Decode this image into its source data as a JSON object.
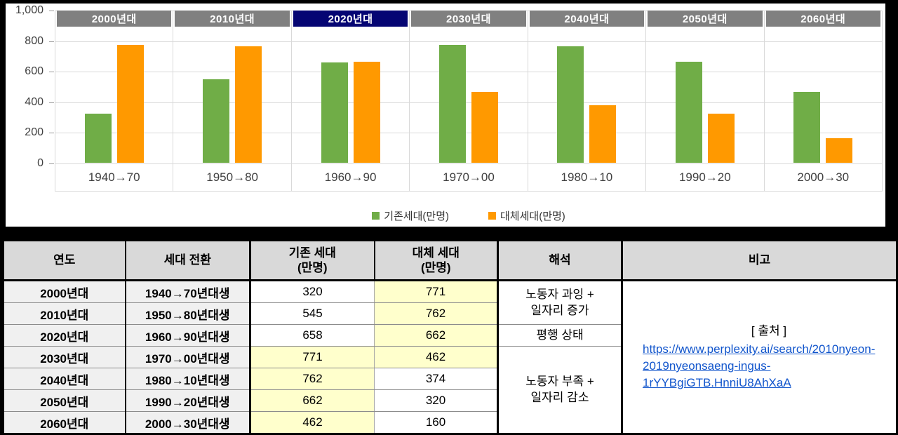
{
  "colors": {
    "existing_series": "#70AD47",
    "replacement_series": "#FF9900",
    "decade_header_bg": "#808080",
    "decade_header_selected_bg": "#050573",
    "table_header_bg": "#D9D9D9",
    "label_cell_bg": "#F0F0F0",
    "highlight_cell_bg": "#FFFFCC",
    "link_color": "#1155CC",
    "grid_color": "#D9D9D9"
  },
  "chart": {
    "y_axis": {
      "ticks": [
        "1,000",
        "800",
        "600",
        "400",
        "200",
        "0"
      ]
    },
    "decade_headers": [
      {
        "label": "2000년대",
        "selected": false
      },
      {
        "label": "2010년대",
        "selected": false
      },
      {
        "label": "2020년대",
        "selected": true
      },
      {
        "label": "2030년대",
        "selected": false
      },
      {
        "label": "2040년대",
        "selected": false
      },
      {
        "label": "2050년대",
        "selected": false
      },
      {
        "label": "2060년대",
        "selected": false
      }
    ],
    "x_labels": [
      "1940→70",
      "1950→80",
      "1960→90",
      "1970→00",
      "1980→10",
      "1990→20",
      "2000→30"
    ],
    "legend": [
      {
        "name": "기존세대(만명)"
      },
      {
        "name": "대체세대(만명)"
      }
    ]
  },
  "chart_data": {
    "type": "bar",
    "title": "",
    "categories": [
      "1940→70",
      "1950→80",
      "1960→90",
      "1970→00",
      "1980→10",
      "1990→20",
      "2000→30"
    ],
    "group_labels": [
      "2000년대",
      "2010년대",
      "2020년대",
      "2030년대",
      "2040년대",
      "2050년대",
      "2060년대"
    ],
    "highlighted_group": "2020년대",
    "series": [
      {
        "name": "기존세대(만명)",
        "color": "#70AD47",
        "values": [
          320,
          545,
          658,
          771,
          762,
          662,
          462
        ]
      },
      {
        "name": "대체세대(만명)",
        "color": "#FF9900",
        "values": [
          771,
          762,
          662,
          462,
          374,
          320,
          160
        ]
      }
    ],
    "ylim": [
      0,
      1000
    ],
    "y_tick_interval": 200,
    "grid": true,
    "legend_position": "bottom"
  },
  "table": {
    "headers": [
      "연도",
      "세대 전환",
      "기존 세대\n(만명)",
      "대체 세대\n(만명)",
      "해석",
      "비고"
    ],
    "rows": [
      {
        "year": "2000년대",
        "transition": "1940→70년대생",
        "existing": "320",
        "existing_hl": false,
        "replacement": "771",
        "replacement_hl": true
      },
      {
        "year": "2010년대",
        "transition": "1950→80년대생",
        "existing": "545",
        "existing_hl": false,
        "replacement": "762",
        "replacement_hl": true
      },
      {
        "year": "2020년대",
        "transition": "1960→90년대생",
        "existing": "658",
        "existing_hl": false,
        "replacement": "662",
        "replacement_hl": true
      },
      {
        "year": "2030년대",
        "transition": "1970→00년대생",
        "existing": "771",
        "existing_hl": true,
        "replacement": "462",
        "replacement_hl": true
      },
      {
        "year": "2040년대",
        "transition": "1980→10년대생",
        "existing": "762",
        "existing_hl": true,
        "replacement": "374",
        "replacement_hl": false
      },
      {
        "year": "2050년대",
        "transition": "1990→20년대생",
        "existing": "662",
        "existing_hl": true,
        "replacement": "320",
        "replacement_hl": false
      },
      {
        "year": "2060년대",
        "transition": "2000→30년대생",
        "existing": "462",
        "existing_hl": true,
        "replacement": "160",
        "replacement_hl": false
      }
    ],
    "interpretations": [
      {
        "text": "노동자 과잉 +\n일자리 증가",
        "start_row": 0,
        "rowspan": 2
      },
      {
        "text": "평행 상태",
        "start_row": 2,
        "rowspan": 1
      },
      {
        "text": "노동자 부족 +\n일자리 감소",
        "start_row": 3,
        "rowspan": 4
      }
    ],
    "note": {
      "source_label": "[ 출처 ]",
      "link_text": "https://www.perplexity.ai/search/2010nyeon-2019nyeonsaeng-ingus-1rYYBgiGTB.HnniU8AhXaA",
      "start_row": 0,
      "rowspan": 7
    }
  }
}
